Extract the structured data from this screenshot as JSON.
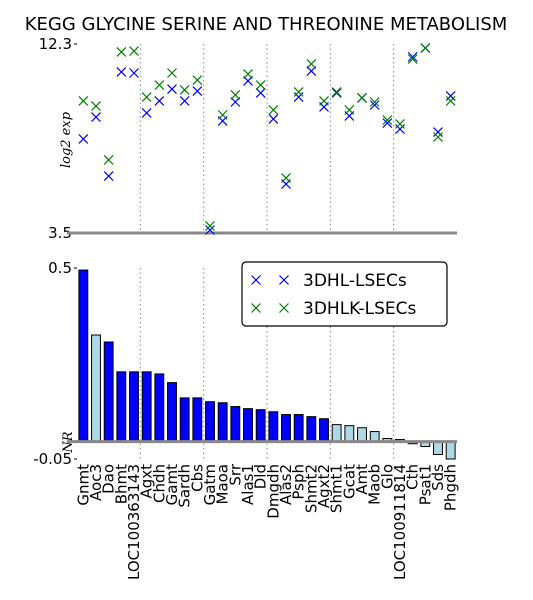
{
  "chart_data": [
    {
      "type": "scatter",
      "title": "KEGG GLYCINE SERINE AND THREONINE METABOLISM",
      "y_label": "log2 exp",
      "categories": [
        "Gnmt",
        "Aoc3",
        "Dao",
        "Bhmt",
        "LOC100363143",
        "Agxt",
        "Chdh",
        "Gamt",
        "Sardh",
        "Cbs",
        "Gatm",
        "Maoa",
        "Srr",
        "Alas1",
        "Dld",
        "Dmgdh",
        "Alas2",
        "Psph",
        "Shmt2",
        "Agxt2",
        "Shmt1",
        "Gcat",
        "Amt",
        "Maob",
        "Glo",
        "LOC100911814",
        "Cth",
        "Psat1",
        "Sds",
        "Phgdh"
      ],
      "series": [
        {
          "name": "3DHL-LSECs",
          "color": "#0000ff",
          "values": [
            7.88,
            8.9,
            6.15,
            11.0,
            10.95,
            9.09,
            9.65,
            10.2,
            9.65,
            10.11,
            3.64,
            8.72,
            9.6,
            10.58,
            10.02,
            8.81,
            5.78,
            9.83,
            11.04,
            9.37,
            10.02,
            8.95,
            9.79,
            9.46,
            8.62,
            8.34,
            11.7,
            12.11,
            8.2,
            9.88
          ]
        },
        {
          "name": "3DHLK-LSECs",
          "color": "#008000",
          "values": [
            9.65,
            9.41,
            6.9,
            11.93,
            11.97,
            9.83,
            10.39,
            10.95,
            10.16,
            10.62,
            3.83,
            9.0,
            9.93,
            10.9,
            10.39,
            9.23,
            6.06,
            10.07,
            11.37,
            9.65,
            10.07,
            9.23,
            9.79,
            9.6,
            8.76,
            8.58,
            11.6,
            12.11,
            7.97,
            9.65
          ]
        }
      ],
      "ylim": [
        3.5,
        12.3
      ],
      "yticks": [
        3.5,
        12.3
      ],
      "grid": true
    },
    {
      "type": "bar",
      "y_label": "NR",
      "categories": [
        "Gnmt",
        "Aoc3",
        "Dao",
        "Bhmt",
        "LOC100363143",
        "Agxt",
        "Chdh",
        "Gamt",
        "Sardh",
        "Cbs",
        "Gatm",
        "Maoa",
        "Srr",
        "Alas1",
        "Dld",
        "Dmgdh",
        "Alas2",
        "Psph",
        "Shmt2",
        "Agxt2",
        "Shmt1",
        "Gcat",
        "Amt",
        "Maob",
        "Glo",
        "LOC100911814",
        "Cth",
        "Psat1",
        "Sds",
        "Phgdh"
      ],
      "values": [
        0.494,
        0.307,
        0.287,
        0.201,
        0.201,
        0.201,
        0.195,
        0.17,
        0.126,
        0.126,
        0.115,
        0.112,
        0.101,
        0.095,
        0.092,
        0.086,
        0.078,
        0.078,
        0.072,
        0.066,
        0.049,
        0.046,
        0.04,
        0.029,
        0.009,
        0.006,
        -0.006,
        -0.014,
        -0.037,
        -0.05
      ],
      "colors": [
        "#0000ff",
        "#add8e6",
        "#0000ff",
        "#0000ff",
        "#0000ff",
        "#0000ff",
        "#0000ff",
        "#0000ff",
        "#0000ff",
        "#0000ff",
        "#0000ff",
        "#0000ff",
        "#0000ff",
        "#0000ff",
        "#0000ff",
        "#0000ff",
        "#0000ff",
        "#0000ff",
        "#0000ff",
        "#0000ff",
        "#add8e6",
        "#add8e6",
        "#add8e6",
        "#add8e6",
        "#add8e6",
        "#add8e6",
        "#add8e6",
        "#add8e6",
        "#add8e6",
        "#add8e6"
      ],
      "ylim": [
        -0.05,
        0.5
      ],
      "yticks": [
        {
          "value": -0.05,
          "label": "-0.05"
        },
        0.5
      ],
      "grid": true
    }
  ]
}
